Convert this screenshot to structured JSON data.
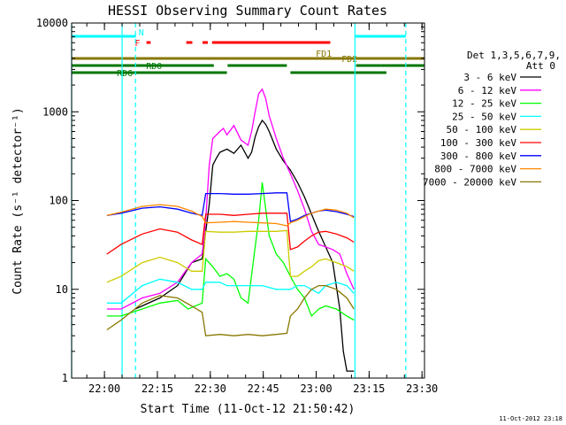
{
  "chart_data": {
    "type": "line",
    "title": "HESSI Observing Summary Count Rates",
    "xlabel": "Start Time (11-Oct-12 21:50:42)",
    "ylabel": "Count Rate (s⁻¹ detector⁻¹)",
    "x_unit": "minutes after 21:50:42",
    "xlim": [
      0,
      100
    ],
    "ylim": [
      1,
      10000
    ],
    "y_scale": "log",
    "x_ticks": [
      {
        "label": "22:00",
        "x": 9.3
      },
      {
        "label": "22:15",
        "x": 24.3
      },
      {
        "label": "22:30",
        "x": 39.3
      },
      {
        "label": "22:45",
        "x": 54.3
      },
      {
        "label": "23:00",
        "x": 69.3
      },
      {
        "label": "23:15",
        "x": 84.3
      },
      {
        "label": "23:30",
        "x": 99.3
      }
    ],
    "y_ticks": [
      {
        "label": "1",
        "value": 1
      },
      {
        "label": "10",
        "value": 10
      },
      {
        "label": "100",
        "value": 100
      },
      {
        "label": "1000",
        "value": 1000
      },
      {
        "label": "10000",
        "value": 10000
      }
    ],
    "grid": false,
    "legend_position": "right",
    "legend_title": "Det 1,3,5,6,7,9,",
    "legend_subtitle": "Att 0",
    "series": [
      {
        "name": "3 - 6 keV",
        "color": "#000000",
        "points": [
          [
            0,
            null
          ],
          [
            17,
            null
          ],
          [
            18,
            6
          ],
          [
            20,
            6.5
          ],
          [
            25,
            8
          ],
          [
            30,
            11
          ],
          [
            34,
            20
          ],
          [
            37,
            22
          ],
          [
            39,
            90
          ],
          [
            40,
            250
          ],
          [
            41,
            300
          ],
          [
            42,
            350
          ],
          [
            44,
            380
          ],
          [
            46,
            340
          ],
          [
            48,
            420
          ],
          [
            50,
            300
          ],
          [
            51,
            350
          ],
          [
            52,
            520
          ],
          [
            53,
            680
          ],
          [
            54,
            800
          ],
          [
            55,
            720
          ],
          [
            56,
            600
          ],
          [
            58,
            380
          ],
          [
            60,
            280
          ],
          [
            62,
            220
          ],
          [
            64,
            160
          ],
          [
            66,
            110
          ],
          [
            68,
            70
          ],
          [
            70,
            45
          ],
          [
            72,
            30
          ],
          [
            74,
            20
          ],
          [
            76,
            6
          ],
          [
            77,
            2
          ],
          [
            78,
            1.2
          ],
          [
            80,
            1.2
          ]
        ]
      },
      {
        "name": "6 - 12 keV",
        "color": "#ff00ff",
        "points": [
          [
            0,
            null
          ],
          [
            10,
            6
          ],
          [
            14,
            6
          ],
          [
            20,
            8
          ],
          [
            25,
            9
          ],
          [
            30,
            12
          ],
          [
            34,
            20
          ],
          [
            37,
            25
          ],
          [
            38,
            60
          ],
          [
            39,
            250
          ],
          [
            40,
            500
          ],
          [
            42,
            600
          ],
          [
            43,
            650
          ],
          [
            44,
            550
          ],
          [
            46,
            700
          ],
          [
            48,
            480
          ],
          [
            50,
            420
          ],
          [
            51,
            600
          ],
          [
            52,
            1000
          ],
          [
            53,
            1600
          ],
          [
            54,
            1800
          ],
          [
            55,
            1400
          ],
          [
            56,
            900
          ],
          [
            58,
            500
          ],
          [
            60,
            300
          ],
          [
            62,
            200
          ],
          [
            64,
            130
          ],
          [
            66,
            80
          ],
          [
            68,
            45
          ],
          [
            70,
            32
          ],
          [
            72,
            30
          ],
          [
            74,
            28
          ],
          [
            76,
            25
          ],
          [
            78,
            15
          ],
          [
            80,
            10
          ],
          [
            82,
            null
          ],
          [
            100,
            null
          ]
        ]
      },
      {
        "name": "12 - 25 keV",
        "color": "#00ff00",
        "points": [
          [
            0,
            null
          ],
          [
            10,
            5
          ],
          [
            14,
            5
          ],
          [
            20,
            6
          ],
          [
            25,
            7
          ],
          [
            30,
            7.5
          ],
          [
            33,
            6
          ],
          [
            37,
            7
          ],
          [
            38,
            22
          ],
          [
            40,
            18
          ],
          [
            42,
            14
          ],
          [
            44,
            15
          ],
          [
            46,
            13
          ],
          [
            48,
            8
          ],
          [
            50,
            7
          ],
          [
            52,
            30
          ],
          [
            53,
            60
          ],
          [
            54,
            160
          ],
          [
            55,
            80
          ],
          [
            56,
            40
          ],
          [
            58,
            25
          ],
          [
            60,
            20
          ],
          [
            62,
            14
          ],
          [
            64,
            10
          ],
          [
            66,
            8
          ],
          [
            68,
            5
          ],
          [
            70,
            6
          ],
          [
            72,
            6.5
          ],
          [
            75,
            6
          ],
          [
            78,
            5
          ],
          [
            80,
            4.5
          ]
        ]
      },
      {
        "name": "25 - 50 keV",
        "color": "#00ffff",
        "points": [
          [
            0,
            null
          ],
          [
            10,
            7
          ],
          [
            14,
            7
          ],
          [
            20,
            11
          ],
          [
            25,
            13
          ],
          [
            30,
            12
          ],
          [
            34,
            10
          ],
          [
            37,
            10
          ],
          [
            38,
            12
          ],
          [
            42,
            12
          ],
          [
            44,
            11
          ],
          [
            46,
            11
          ],
          [
            50,
            11
          ],
          [
            54,
            11
          ],
          [
            58,
            10
          ],
          [
            61,
            10
          ],
          [
            62,
            10
          ],
          [
            64,
            11
          ],
          [
            66,
            11
          ],
          [
            68,
            10
          ],
          [
            70,
            9
          ],
          [
            72,
            11
          ],
          [
            75,
            12
          ],
          [
            78,
            11
          ],
          [
            80,
            9
          ]
        ]
      },
      {
        "name": "50 - 100 keV",
        "color": "#cccc00",
        "points": [
          [
            0,
            null
          ],
          [
            10,
            12
          ],
          [
            14,
            14
          ],
          [
            20,
            20
          ],
          [
            25,
            23
          ],
          [
            30,
            20
          ],
          [
            34,
            16
          ],
          [
            37,
            16
          ],
          [
            38,
            45
          ],
          [
            42,
            44
          ],
          [
            46,
            44
          ],
          [
            50,
            45
          ],
          [
            54,
            45
          ],
          [
            58,
            45
          ],
          [
            61,
            46
          ],
          [
            62,
            14
          ],
          [
            64,
            14
          ],
          [
            66,
            16
          ],
          [
            68,
            18
          ],
          [
            70,
            21
          ],
          [
            72,
            22
          ],
          [
            75,
            20
          ],
          [
            78,
            18
          ],
          [
            80,
            16
          ]
        ]
      },
      {
        "name": "100 - 300 keV",
        "color": "#ff0000",
        "points": [
          [
            0,
            null
          ],
          [
            10,
            25
          ],
          [
            14,
            32
          ],
          [
            20,
            42
          ],
          [
            25,
            48
          ],
          [
            30,
            44
          ],
          [
            34,
            36
          ],
          [
            37,
            32
          ],
          [
            38,
            70
          ],
          [
            42,
            70
          ],
          [
            46,
            68
          ],
          [
            50,
            70
          ],
          [
            54,
            72
          ],
          [
            58,
            72
          ],
          [
            61,
            72
          ],
          [
            62,
            28
          ],
          [
            64,
            30
          ],
          [
            66,
            35
          ],
          [
            68,
            40
          ],
          [
            70,
            44
          ],
          [
            72,
            45
          ],
          [
            75,
            42
          ],
          [
            78,
            38
          ],
          [
            80,
            34
          ]
        ]
      },
      {
        "name": "300 - 800 keV",
        "color": "#0000ff",
        "points": [
          [
            0,
            null
          ],
          [
            10,
            68
          ],
          [
            14,
            72
          ],
          [
            20,
            82
          ],
          [
            25,
            85
          ],
          [
            30,
            80
          ],
          [
            34,
            72
          ],
          [
            37,
            68
          ],
          [
            38,
            120
          ],
          [
            42,
            120
          ],
          [
            46,
            118
          ],
          [
            50,
            118
          ],
          [
            54,
            120
          ],
          [
            58,
            122
          ],
          [
            61,
            122
          ],
          [
            62,
            58
          ],
          [
            64,
            62
          ],
          [
            66,
            68
          ],
          [
            68,
            72
          ],
          [
            70,
            76
          ],
          [
            72,
            78
          ],
          [
            75,
            75
          ],
          [
            78,
            70
          ],
          [
            80,
            66
          ]
        ]
      },
      {
        "name": "800 - 7000 keV",
        "color": "#ff8800",
        "points": [
          [
            0,
            null
          ],
          [
            10,
            68
          ],
          [
            14,
            74
          ],
          [
            20,
            86
          ],
          [
            25,
            90
          ],
          [
            30,
            86
          ],
          [
            34,
            76
          ],
          [
            37,
            66
          ],
          [
            38,
            56
          ],
          [
            42,
            57
          ],
          [
            46,
            58
          ],
          [
            50,
            57
          ],
          [
            54,
            56
          ],
          [
            58,
            55
          ],
          [
            61,
            52
          ],
          [
            62,
            56
          ],
          [
            64,
            60
          ],
          [
            66,
            66
          ],
          [
            68,
            72
          ],
          [
            70,
            76
          ],
          [
            72,
            80
          ],
          [
            75,
            78
          ],
          [
            78,
            72
          ],
          [
            80,
            64
          ]
        ]
      },
      {
        "name": "7000 - 20000 keV",
        "color": "#887700",
        "points": [
          [
            0,
            null
          ],
          [
            10,
            3.5
          ],
          [
            14,
            4.5
          ],
          [
            20,
            7
          ],
          [
            25,
            8.5
          ],
          [
            30,
            8
          ],
          [
            34,
            6.5
          ],
          [
            37,
            5.5
          ],
          [
            38,
            3
          ],
          [
            42,
            3.1
          ],
          [
            46,
            3
          ],
          [
            50,
            3.1
          ],
          [
            54,
            3
          ],
          [
            58,
            3.1
          ],
          [
            61,
            3.2
          ],
          [
            62,
            5
          ],
          [
            64,
            6
          ],
          [
            66,
            8
          ],
          [
            68,
            10
          ],
          [
            70,
            11
          ],
          [
            72,
            11
          ],
          [
            75,
            10
          ],
          [
            78,
            8
          ],
          [
            80,
            6
          ]
        ]
      }
    ],
    "vertical_lines": [
      {
        "x": 0,
        "style": "solid",
        "color": "#00ffff"
      },
      {
        "x": 14.3,
        "style": "solid",
        "color": "#00ffff"
      },
      {
        "x": 18.1,
        "style": "dashed",
        "color": "#00ffff"
      },
      {
        "x": 80.3,
        "style": "solid",
        "color": "#00ffff"
      },
      {
        "x": 94.7,
        "style": "dashed",
        "color": "#00ffff"
      }
    ],
    "flag_bars": [
      {
        "label": "N",
        "color": "#00ffff",
        "segments": [
          [
            0,
            18.2
          ],
          [
            80.3,
            94.7
          ]
        ],
        "label_x": 19,
        "row": 0
      },
      {
        "label": "F",
        "color": "#ff0000",
        "segments": [
          [
            21.2,
            22.4
          ],
          [
            32.5,
            34.2
          ],
          [
            37.1,
            38.6
          ],
          [
            39.8,
            73.3
          ]
        ],
        "label_x": 17.9,
        "row": 1
      },
      {
        "label": "FD1",
        "color": "#887700",
        "segments": [],
        "label_x": 69.2,
        "row": 2
      },
      {
        "label": "FD2",
        "color": "#887700",
        "segments": [],
        "label_x": 76.5,
        "row": 3
      },
      {
        "label": "",
        "color": "#887700",
        "segments": [
          [
            0,
            100
          ]
        ],
        "label_x": 0,
        "row": 4
      },
      {
        "label": "RD0",
        "color": "#007700",
        "segments": [
          [
            0,
            40.3
          ],
          [
            44.2,
            61
          ],
          [
            80.6,
            87.5
          ],
          [
            87.5,
            100
          ]
        ],
        "label_x": 21.1,
        "row": 5
      },
      {
        "label": "RD6",
        "color": "#007700",
        "segments": [
          [
            0,
            44
          ],
          [
            62,
            89.2
          ]
        ],
        "label_x": 12.8,
        "row": 6
      }
    ]
  },
  "timestamp": "11-Oct-2012 23:18"
}
